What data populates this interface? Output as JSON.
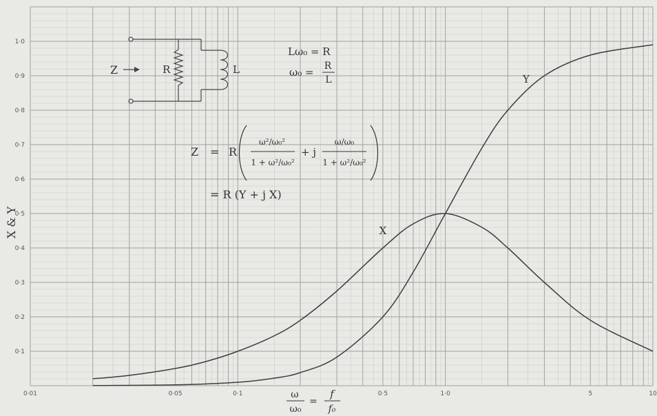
{
  "chart_data": {
    "type": "line",
    "x_scale": "log",
    "xlim": [
      0.01,
      10
    ],
    "ylim": [
      0,
      1.1
    ],
    "grid": true,
    "x_ticks": [
      {
        "value": 0.01,
        "label": "0·01"
      },
      {
        "value": 0.05,
        "label": "0·05"
      },
      {
        "value": 0.1,
        "label": "0·1"
      },
      {
        "value": 0.5,
        "label": "0·5"
      },
      {
        "value": 1,
        "label": "1·0"
      },
      {
        "value": 5,
        "label": "5"
      },
      {
        "value": 10,
        "label": "10"
      }
    ],
    "y_ticks": [
      {
        "value": 0.1,
        "label": "0·1"
      },
      {
        "value": 0.2,
        "label": "0·2"
      },
      {
        "value": 0.3,
        "label": "0·3"
      },
      {
        "value": 0.4,
        "label": "0·4"
      },
      {
        "value": 0.5,
        "label": "0·5"
      },
      {
        "value": 0.6,
        "label": "0·6"
      },
      {
        "value": 0.7,
        "label": "0·7"
      },
      {
        "value": 0.8,
        "label": "0·8"
      },
      {
        "value": 0.9,
        "label": "0·9"
      },
      {
        "value": 1.0,
        "label": "1·0"
      }
    ],
    "xlabel": {
      "num": "ω",
      "den": "ω₀",
      "eq": "=",
      "num2": "f",
      "den2": "f₀"
    },
    "ylabel": "X & Y",
    "series": [
      {
        "name": "X",
        "x": [
          0.02,
          0.03,
          0.05,
          0.07,
          0.1,
          0.15,
          0.2,
          0.3,
          0.5,
          0.7,
          1.0,
          1.5,
          2.0,
          3.0,
          5.0,
          10.0
        ],
        "y": [
          0.02,
          0.03,
          0.05,
          0.07,
          0.1,
          0.145,
          0.19,
          0.275,
          0.4,
          0.47,
          0.5,
          0.46,
          0.4,
          0.3,
          0.19,
          0.1
        ]
      },
      {
        "name": "Y",
        "x": [
          0.02,
          0.05,
          0.1,
          0.15,
          0.2,
          0.3,
          0.5,
          0.7,
          1.0,
          1.5,
          2.0,
          3.0,
          5.0,
          10.0
        ],
        "y": [
          0.0004,
          0.0025,
          0.01,
          0.022,
          0.038,
          0.083,
          0.2,
          0.33,
          0.5,
          0.69,
          0.8,
          0.9,
          0.96,
          0.99
        ]
      }
    ],
    "curve_labels": [
      {
        "text": "X",
        "x": 0.5,
        "y": 0.45
      },
      {
        "text": "Y",
        "x": 2.45,
        "y": 0.89
      }
    ],
    "annotations": {
      "circuit": {
        "input_label": "Z",
        "resistor_label": "R",
        "inductor_label": "L"
      },
      "relations": {
        "line1": "Lω₀ = R",
        "line2_lhs": "ω₀ =",
        "line2_num": "R",
        "line2_den": "L"
      },
      "formula": {
        "lhs": "Z",
        "eq": "=",
        "R": "R",
        "t1_num": "ω²/ω₀²",
        "t1_den": "1 + ω²/ω₀²",
        "plus_j": "+ j",
        "t2_num": "ω/ω₀",
        "t2_den": "1 + ω²/ω₀²",
        "line2": "= R (Y + j X)"
      }
    }
  }
}
